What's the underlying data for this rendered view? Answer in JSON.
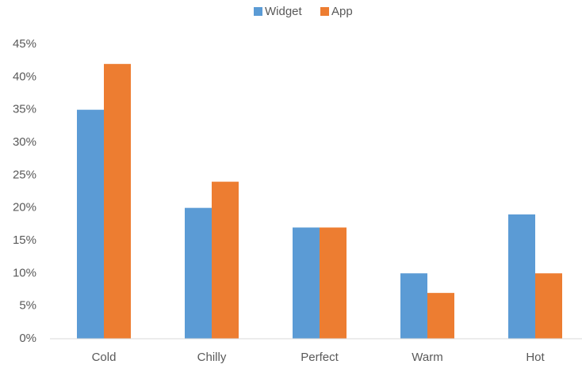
{
  "chart_data": {
    "type": "bar",
    "categories": [
      "Cold",
      "Chilly",
      "Perfect",
      "Warm",
      "Hot"
    ],
    "series": [
      {
        "name": "Widget",
        "color": "#5b9bd5",
        "values": [
          35,
          20,
          17,
          10,
          19
        ]
      },
      {
        "name": "App",
        "color": "#ed7d31",
        "values": [
          42,
          24,
          17,
          7,
          10
        ]
      }
    ],
    "ylim": [
      0,
      45
    ],
    "yticks": [
      {
        "value": 0,
        "label": "0%"
      },
      {
        "value": 5,
        "label": "5%"
      },
      {
        "value": 10,
        "label": "10%"
      },
      {
        "value": 15,
        "label": "15%"
      },
      {
        "value": 20,
        "label": "20%"
      },
      {
        "value": 25,
        "label": "25%"
      },
      {
        "value": 30,
        "label": "30%"
      },
      {
        "value": 35,
        "label": "35%"
      },
      {
        "value": 40,
        "label": "40%"
      },
      {
        "value": 45,
        "label": "45%"
      }
    ],
    "grid": false,
    "legend": "top"
  }
}
